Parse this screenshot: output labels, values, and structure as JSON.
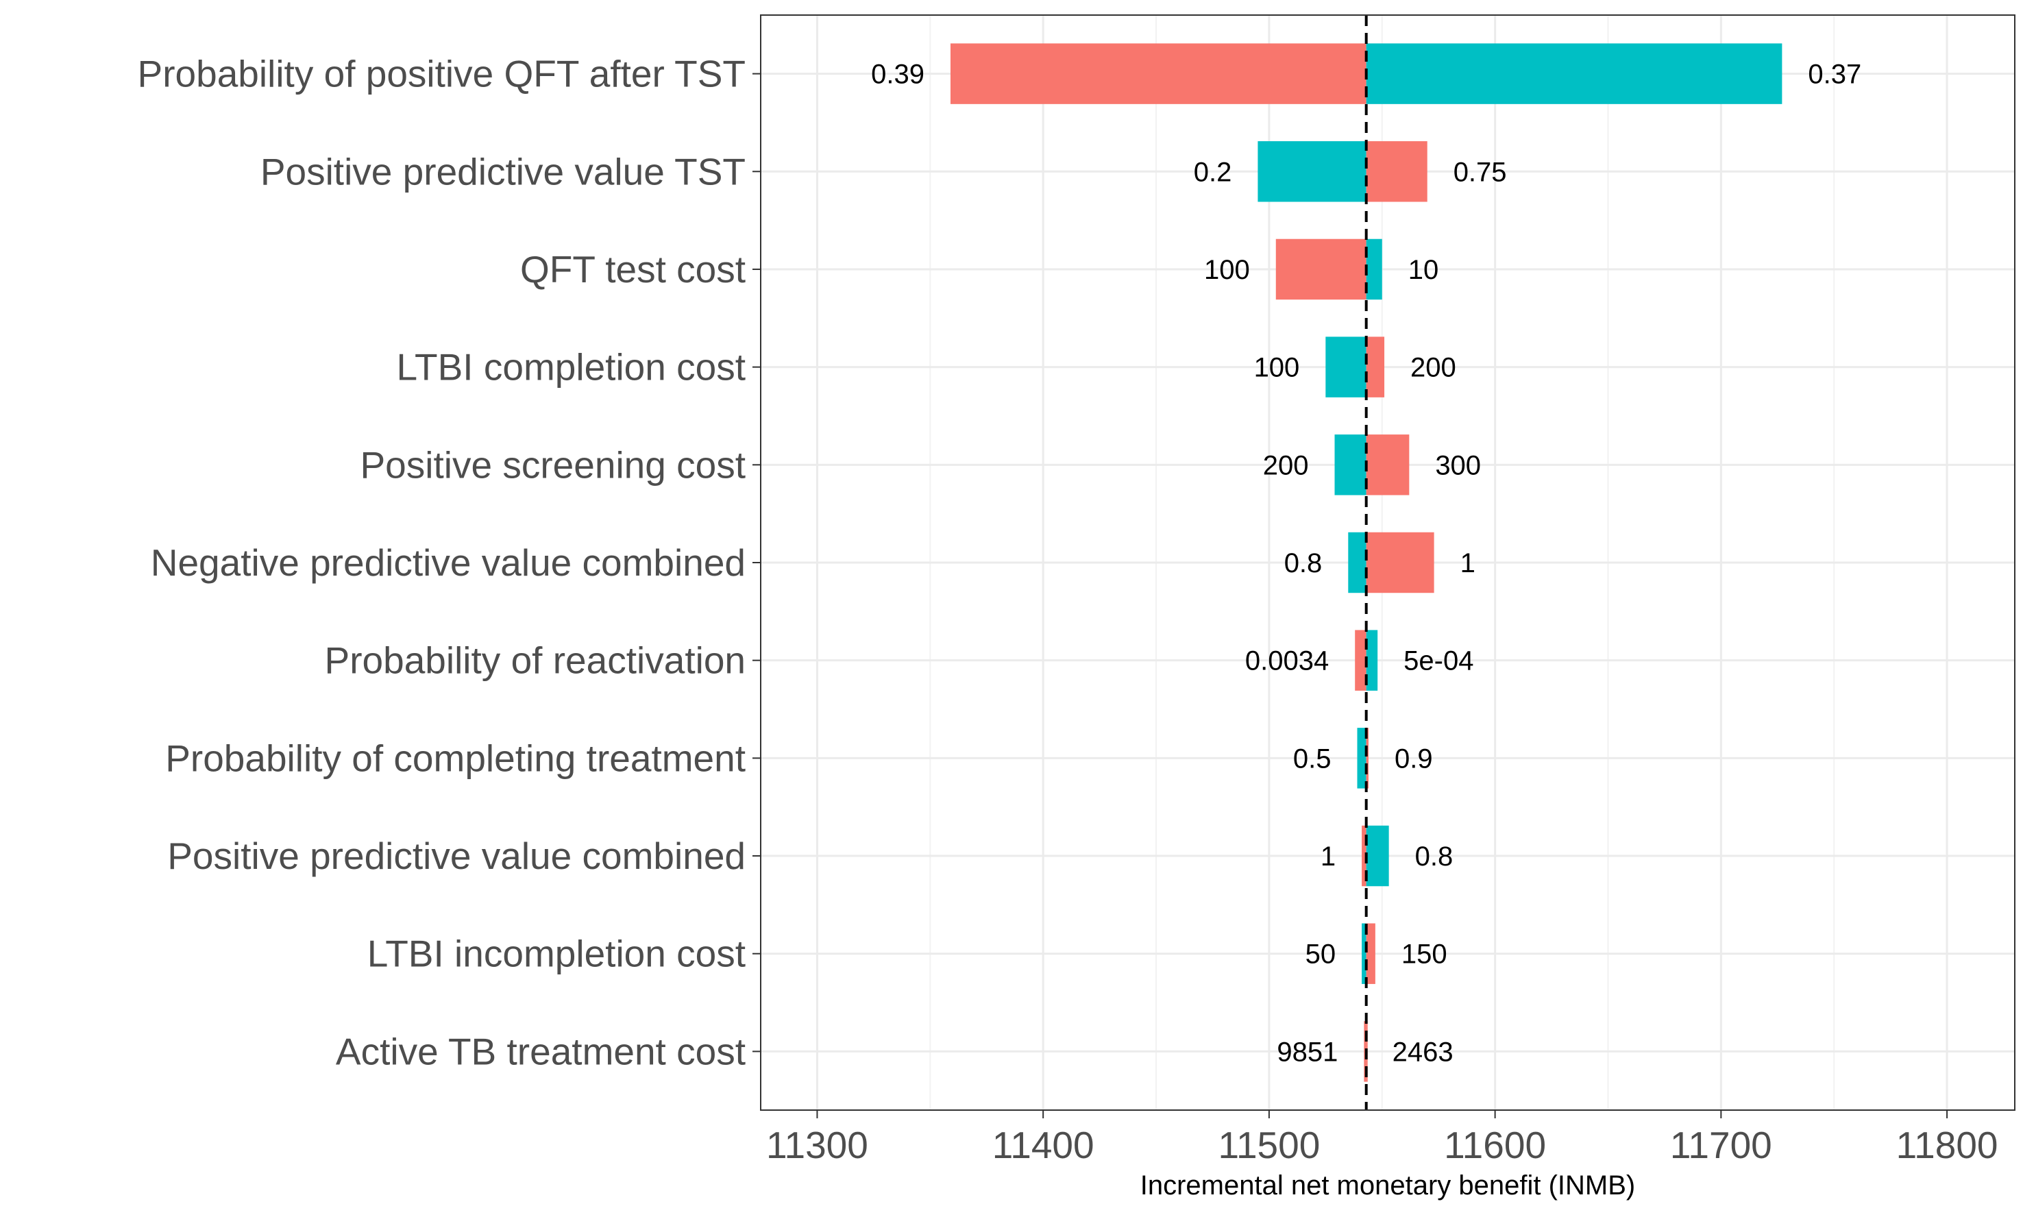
{
  "chart_data": {
    "type": "bar",
    "subtype": "tornado",
    "xlabel": "Incremental net monetary benefit (INMB)",
    "ylabel": "",
    "xlim": [
      11275,
      11830
    ],
    "xticks": [
      11300,
      11400,
      11500,
      11600,
      11700,
      11800
    ],
    "base_value": 11543,
    "grid": true,
    "reference_line": "dashed",
    "colors": {
      "salmon": "#F8766D",
      "teal": "#00BFC4"
    },
    "categories": [
      "Probability of positive QFT after TST",
      "Positive predictive value TST",
      "QFT test cost",
      "LTBI completion cost",
      "Positive screening cost",
      "Negative predictive value combined",
      "Probability of reactivation",
      "Probability of completing treatment",
      "Positive predictive value combined",
      "LTBI incompletion cost",
      "Active TB treatment cost"
    ],
    "bars": [
      {
        "left_value": 11359,
        "right_value": 11727,
        "left_color": "salmon",
        "right_color": "teal",
        "left_label": "0.39",
        "right_label": "0.37"
      },
      {
        "left_value": 11495,
        "right_value": 11570,
        "left_color": "teal",
        "right_color": "salmon",
        "left_label": "0.2",
        "right_label": "0.75"
      },
      {
        "left_value": 11503,
        "right_value": 11550,
        "left_color": "salmon",
        "right_color": "teal",
        "left_label": "100",
        "right_label": "10"
      },
      {
        "left_value": 11525,
        "right_value": 11551,
        "left_color": "teal",
        "right_color": "salmon",
        "left_label": "100",
        "right_label": "200"
      },
      {
        "left_value": 11529,
        "right_value": 11562,
        "left_color": "teal",
        "right_color": "salmon",
        "left_label": "200",
        "right_label": "300"
      },
      {
        "left_value": 11535,
        "right_value": 11573,
        "left_color": "teal",
        "right_color": "salmon",
        "left_label": "0.8",
        "right_label": "1"
      },
      {
        "left_value": 11538,
        "right_value": 11548,
        "left_color": "salmon",
        "right_color": "teal",
        "left_label": "0.0034",
        "right_label": "5e-04"
      },
      {
        "left_value": 11539,
        "right_value": 11544,
        "left_color": "teal",
        "right_color": "salmon",
        "left_label": "0.5",
        "right_label": "0.9"
      },
      {
        "left_value": 11541,
        "right_value": 11553,
        "left_color": "salmon",
        "right_color": "teal",
        "left_label": "1",
        "right_label": "0.8"
      },
      {
        "left_value": 11541,
        "right_value": 11547,
        "left_color": "teal",
        "right_color": "salmon",
        "left_label": "50",
        "right_label": "150"
      },
      {
        "left_value": 11542,
        "right_value": 11543,
        "left_color": "salmon",
        "right_color": "salmon",
        "left_label": "9851",
        "right_label": "2463"
      }
    ]
  }
}
